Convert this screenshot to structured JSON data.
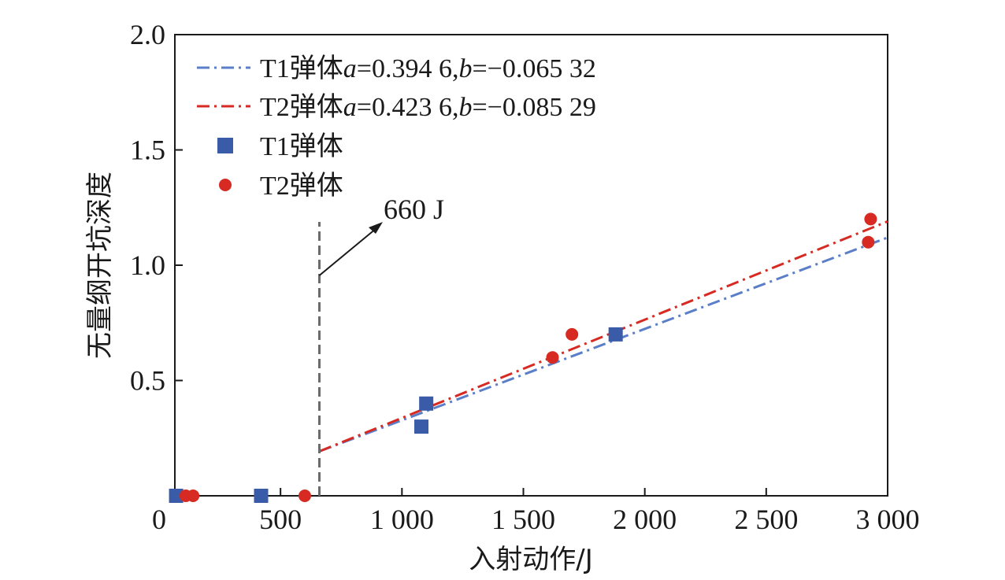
{
  "chart_data": {
    "type": "scatter",
    "xlabel": "入射动作/J",
    "ylabel": "无量纲开坑深度",
    "xlim": [
      0,
      3000
    ],
    "ylim": [
      0,
      2.0
    ],
    "x_ticks": [
      0,
      500,
      1000,
      1500,
      2000,
      2500,
      3000
    ],
    "x_tick_labels": [
      "0",
      "500",
      "1 000",
      "1 500",
      "2 000",
      "2 500",
      "3 000"
    ],
    "y_ticks": [
      0.5,
      1.0,
      1.5,
      2.0
    ],
    "y_tick_labels": [
      "0.5",
      "1.0",
      "1.5",
      "2.0"
    ],
    "grid": false,
    "legend_position": "top-left",
    "series": [
      {
        "name": "T1弹体",
        "marker": "square",
        "color": "#3a5ba8",
        "points": [
          [
            70,
            0
          ],
          [
            420,
            0
          ],
          [
            1080,
            0.3
          ],
          [
            1100,
            0.4
          ],
          [
            1880,
            0.7
          ]
        ]
      },
      {
        "name": "T2弹体",
        "marker": "circle",
        "color": "#d62a22",
        "points": [
          [
            110,
            0
          ],
          [
            140,
            0
          ],
          [
            600,
            0
          ],
          [
            1620,
            0.6
          ],
          [
            1700,
            0.7
          ],
          [
            2920,
            1.1
          ],
          [
            2930,
            1.2
          ]
        ]
      }
    ],
    "fits": [
      {
        "name": "T1弹体a=0.394 6,b=−0.065 32",
        "color": "#5a7fc8",
        "x_start": 660,
        "points": [
          [
            660,
            0.193
          ],
          [
            3000,
            1.12
          ]
        ]
      },
      {
        "name": "T2弹体a=0.423 6,b=−0.085 29",
        "color": "#d62a22",
        "x_start": 660,
        "points": [
          [
            660,
            0.193
          ],
          [
            3000,
            1.19
          ]
        ]
      }
    ],
    "threshold": {
      "x": 660,
      "label": "660 J"
    },
    "legend_entries": [
      {
        "parts": [
          {
            "t": "T1弹体"
          },
          {
            "t": "a",
            "i": true
          },
          {
            "t": "=0.394 6,"
          },
          {
            "t": "b",
            "i": true
          },
          {
            "t": "=−0.065 32"
          }
        ],
        "kind": "line",
        "color": "#5a7fc8"
      },
      {
        "parts": [
          {
            "t": "T2弹体"
          },
          {
            "t": "a",
            "i": true
          },
          {
            "t": "=0.423 6,"
          },
          {
            "t": "b",
            "i": true
          },
          {
            "t": "=−0.085 29"
          }
        ],
        "kind": "line",
        "color": "#d62a22"
      },
      {
        "parts": [
          {
            "t": "T1弹体"
          }
        ],
        "kind": "square",
        "color": "#3a5ba8"
      },
      {
        "parts": [
          {
            "t": "T2弹体"
          }
        ],
        "kind": "circle",
        "color": "#d62a22"
      }
    ]
  }
}
